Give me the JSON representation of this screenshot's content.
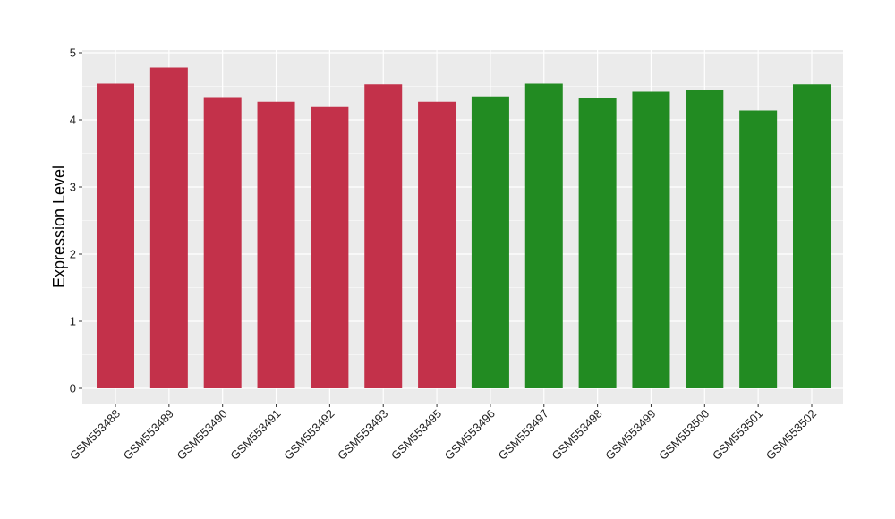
{
  "chart_data": {
    "type": "bar",
    "title": "",
    "xlabel": "",
    "ylabel": "Expression Level",
    "ylim": [
      -0.25,
      5.05
    ],
    "yticks": [
      0,
      1,
      2,
      3,
      4,
      5
    ],
    "grid": true,
    "categories": [
      "GSM553488",
      "GSM553489",
      "GSM553490",
      "GSM553491",
      "GSM553492",
      "GSM553493",
      "GSM553495",
      "GSM553496",
      "GSM553497",
      "GSM553498",
      "GSM553499",
      "GSM553500",
      "GSM553501",
      "GSM553502"
    ],
    "values": [
      4.54,
      4.78,
      4.34,
      4.27,
      4.19,
      4.53,
      4.27,
      4.35,
      4.54,
      4.33,
      4.42,
      4.44,
      4.14,
      4.53
    ],
    "bar_colors": [
      "#c3314a",
      "#c3314a",
      "#c3314a",
      "#c3314a",
      "#c3314a",
      "#c3314a",
      "#c3314a",
      "#228b22",
      "#228b22",
      "#228b22",
      "#228b22",
      "#228b22",
      "#228b22",
      "#228b22"
    ],
    "panel_background": "#ebebeb",
    "grid_color": "#ffffff"
  }
}
